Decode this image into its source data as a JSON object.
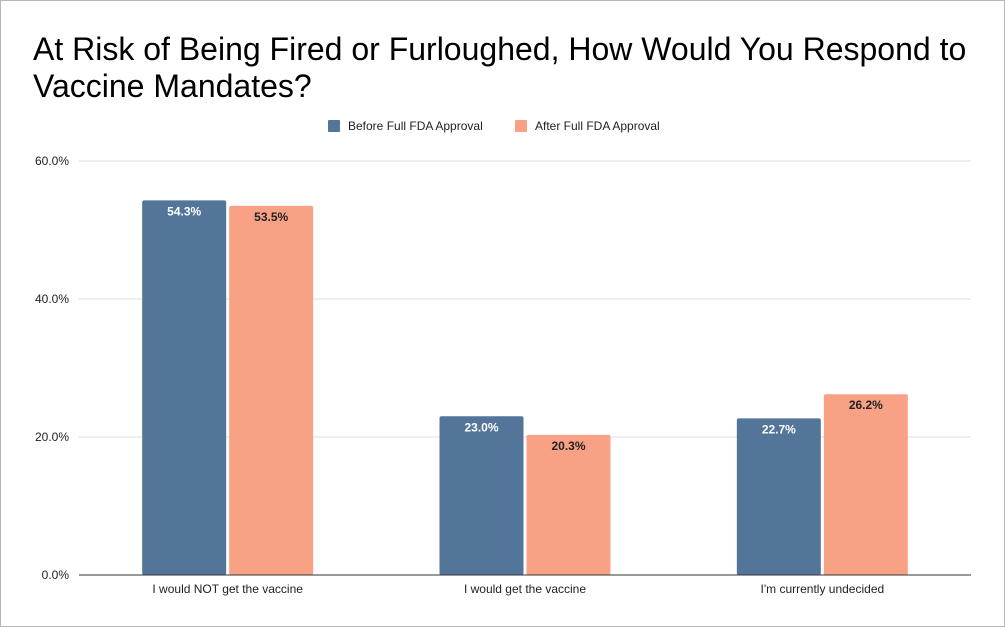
{
  "chart_data": {
    "type": "bar",
    "title": "At Risk of Being Fired or Furloughed, How Would You Respond to Vaccine Mandates?",
    "categories": [
      "I would NOT get the vaccine",
      "I would get the vaccine",
      "I'm currently undecided"
    ],
    "series": [
      {
        "name": "Before Full FDA Approval",
        "color": "#54759a",
        "label_color": "#ffffff",
        "values": [
          54.3,
          23.0,
          22.7
        ],
        "labels": [
          "54.3%",
          "23.0%",
          "22.7%"
        ]
      },
      {
        "name": "After Full FDA Approval",
        "color": "#f9a185",
        "label_color": "#222222",
        "values": [
          53.5,
          20.3,
          26.2
        ],
        "labels": [
          "53.5%",
          "20.3%",
          "26.2%"
        ]
      }
    ],
    "ylim": [
      0,
      60
    ],
    "yticks": [
      0,
      20,
      40,
      60
    ],
    "ytick_labels": [
      "0.0%",
      "20.0%",
      "40.0%",
      "60.0%"
    ],
    "xlabel": "",
    "ylabel": "",
    "grid": true,
    "legend_position": "top-center"
  }
}
